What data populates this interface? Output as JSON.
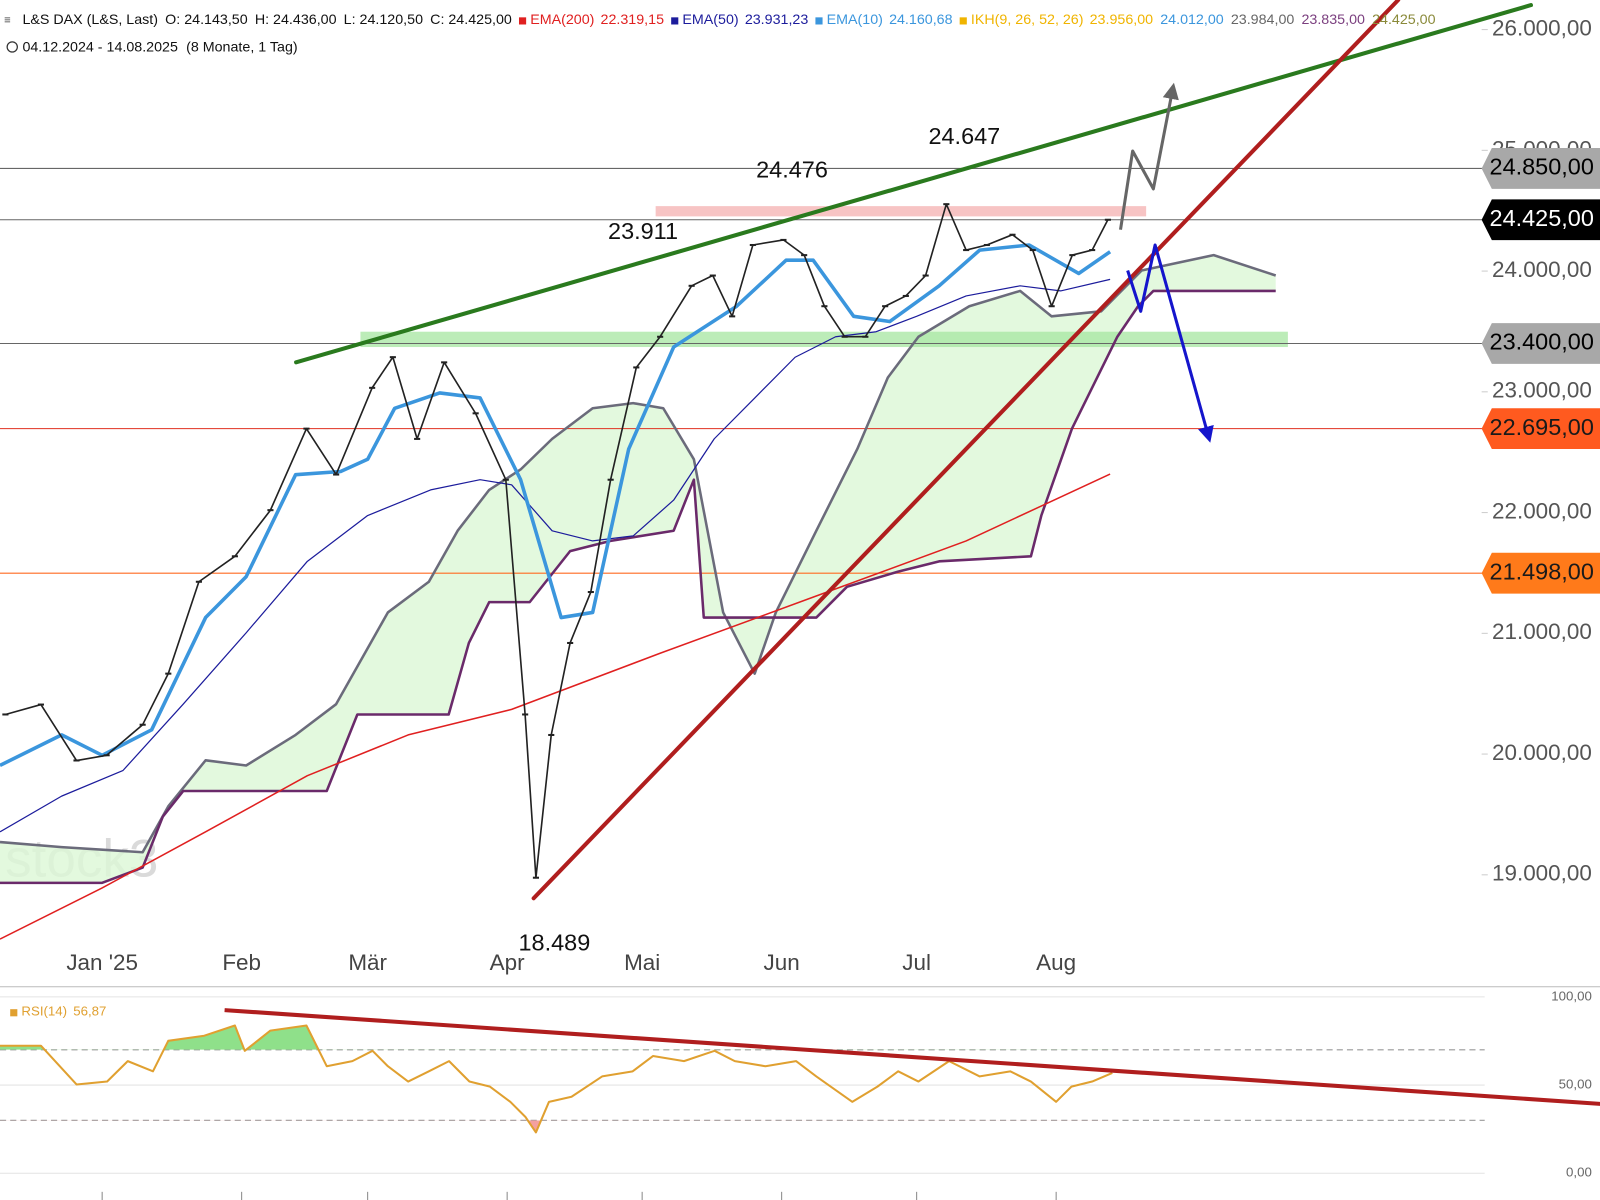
{
  "chart_data": [
    {
      "type": "line",
      "header": {
        "symbol": "L&S DAX (L&S, Last)",
        "ohlc": [
          "O: 24.143,50",
          "H: 24.436,00",
          "L: 24.120,50",
          "C: 24.425,00"
        ],
        "period": "04.12.2024 - 14.08.2025",
        "period_note": "(8 Monate, 1 Tag)"
      },
      "watermark": "stock3",
      "xlim": [
        5.3,
        334.1
      ],
      "ylim": [
        18090,
        26245
      ],
      "xticks": [
        {
          "value": 28,
          "label": "Jan '25"
        },
        {
          "value": 59,
          "label": "Feb"
        },
        {
          "value": 87,
          "label": "Mär"
        },
        {
          "value": 118,
          "label": "Apr"
        },
        {
          "value": 148,
          "label": "Mai"
        },
        {
          "value": 179,
          "label": "Jun"
        },
        {
          "value": 209,
          "label": "Jul"
        },
        {
          "value": 240,
          "label": "Aug"
        }
      ],
      "yticks": [
        {
          "value": 19000,
          "label": "19.000,00"
        },
        {
          "value": 20000,
          "label": "20.000,00"
        },
        {
          "value": 21000,
          "label": "21.000,00"
        },
        {
          "value": 22000,
          "label": "22.000,00"
        },
        {
          "value": 23000,
          "label": "23.000,00"
        },
        {
          "value": 24000,
          "label": "24.000,00"
        },
        {
          "value": 25000,
          "label": "25.000,00"
        },
        {
          "value": 26000,
          "label": "26.000,00"
        }
      ],
      "close": {
        "color": "#222222",
        "x": [
          6.5,
          14.4,
          22.3,
          29,
          37,
          42.7,
          49.5,
          57.5,
          65.4,
          73.4,
          80,
          88,
          92.6,
          98,
          104,
          111,
          117.7,
          122,
          124.4,
          127.8,
          132,
          136.6,
          141,
          146.7,
          152,
          159,
          163.7,
          168,
          172.6,
          179.4,
          184,
          188.5,
          193,
          197.6,
          202,
          206.6,
          211,
          215.6,
          220,
          224.6,
          230.3,
          234.8,
          239,
          243.6,
          248,
          251.5
        ],
        "values": [
          20328,
          20410,
          19947,
          19990,
          20243,
          20666,
          21427,
          21638,
          22020,
          22695,
          22315,
          23033,
          23287,
          22610,
          23244,
          22822,
          22272,
          20328,
          18976,
          20158,
          20920,
          21342,
          22272,
          23202,
          23456,
          23878,
          23963,
          23625,
          24216,
          24258,
          24132,
          23709,
          23456,
          23456,
          23709,
          23794,
          23963,
          24554,
          24174,
          24216,
          24301,
          24174,
          23709,
          24132,
          24174,
          24425
        ]
      },
      "series": [
        {
          "name": "EMA(200)",
          "last_label": "22.319,15",
          "color": "#e02020",
          "width": 1.5,
          "x": [
            5.3,
            28,
            51,
            73.6,
            96,
            119,
            152,
            186,
            220,
            252
          ],
          "values": [
            18468,
            18891,
            19356,
            19821,
            20159,
            20370,
            20835,
            21300,
            21765,
            22319
          ]
        },
        {
          "name": "EMA(50)",
          "last_label": "23.931,23",
          "color": "#1c1c9c",
          "width": 1.2,
          "x": [
            5.3,
            19,
            32.6,
            46,
            60,
            73.6,
            87,
            101,
            112,
            119,
            128,
            137,
            146,
            155,
            164,
            173,
            182,
            191,
            200,
            209,
            220,
            232,
            241,
            252
          ],
          "values": [
            19356,
            19652,
            19863,
            20413,
            21004,
            21596,
            21976,
            22188,
            22272,
            22230,
            21849,
            21765,
            21807,
            22103,
            22610,
            22948,
            23286,
            23456,
            23498,
            23625,
            23794,
            23878,
            23836,
            23931
          ]
        },
        {
          "name": "EMA(10)",
          "last_label": "24.160,68",
          "color": "#3b96dd",
          "width": 3.5,
          "x": [
            5.3,
            19,
            28,
            39,
            51,
            60,
            71,
            81,
            87,
            93,
            103,
            112,
            121,
            130,
            137,
            145,
            155,
            169,
            180,
            186,
            195,
            203,
            214,
            223,
            234,
            245,
            252
          ],
          "values": [
            19906,
            20159,
            19990,
            20201,
            21131,
            21469,
            22314,
            22340,
            22441,
            22864,
            22991,
            22949,
            22272,
            21131,
            21173,
            22526,
            23371,
            23709,
            24090,
            24090,
            23625,
            23582,
            23878,
            24174,
            24216,
            23980,
            24160
          ]
        }
      ],
      "ichimoku": {
        "name": "IKH(9, 26, 52, 26)",
        "name_color": "#f0b400",
        "labels": [
          "23.956,00",
          "24.012,00",
          "23.984,00",
          "23.835,00",
          "24.425,00"
        ],
        "label_colors": [
          "#f0b400",
          "#3b96dd",
          "#666666",
          "#7b3f7f",
          "#8a8a3a"
        ],
        "cloud_color": "#dcf7d6",
        "span_a": {
          "color": "#6b6b7b",
          "x": [
            5.3,
            19,
            37,
            42.7,
            51,
            60,
            71,
            80,
            91.5,
            100.6,
            107,
            114,
            121,
            128,
            137,
            146,
            152.7,
            159.5,
            166,
            173,
            177.7,
            186.7,
            195.8,
            202.6,
            209.4,
            220.7,
            232,
            239,
            250,
            259,
            275,
            288.8
          ],
          "values": [
            19271,
            19229,
            19187,
            19567,
            19948,
            19905,
            20159,
            20413,
            21173,
            21427,
            21850,
            22188,
            22357,
            22610,
            22864,
            22906,
            22864,
            22441,
            21173,
            20666,
            21173,
            21850,
            22526,
            23118,
            23456,
            23709,
            23836,
            23625,
            23667,
            24005,
            24132,
            23963
          ]
        },
        "span_b": {
          "color": "#6a2a6a",
          "x": [
            5.3,
            28,
            37,
            41.5,
            46,
            77.9,
            84.7,
            105,
            109.5,
            114,
            123,
            132,
            141,
            155,
            159.5,
            161.7,
            186.7,
            193.5,
            204.9,
            214,
            234.4,
            236.7,
            243.5,
            249.1,
            253.6,
            258.2,
            261.6,
            288.8
          ],
          "values": [
            18933,
            18933,
            19060,
            19483,
            19694,
            19694,
            20328,
            20328,
            20920,
            21258,
            21258,
            21681,
            21765,
            21850,
            22272,
            21131,
            21131,
            21385,
            21511,
            21596,
            21638,
            21976,
            22695,
            23118,
            23456,
            23709,
            23836,
            23836
          ]
        }
      },
      "levels": [
        {
          "value": 24850,
          "label": "24.850,00",
          "color": "#666666",
          "box": "#a8a8a8",
          "text_color": "#000000"
        },
        {
          "value": 24425,
          "label": "24.425,00",
          "color": "#666666",
          "box": "#000000",
          "text_color": "#ffffff"
        },
        {
          "value": 23400,
          "label": "23.400,00",
          "color": "#666666",
          "box": "#a8a8a8",
          "text_color": "#000000"
        },
        {
          "value": 22695,
          "label": "22.695,00",
          "color": "#e03020",
          "box": "#ff5a1f",
          "text_color": "#1a1a1a"
        },
        {
          "value": 21498,
          "label": "21.498,00",
          "color": "#ff6a20",
          "box": "#ff7a1a",
          "text_color": "#1a1a1a"
        }
      ],
      "zones": [
        {
          "x": [
            151,
            260
          ],
          "values": [
            24453,
            24538
          ],
          "color": "#f4b0b0"
        },
        {
          "x": [
            85.4,
            291.5
          ],
          "values": [
            23371,
            23498
          ],
          "color": "#a6e6a0"
        }
      ],
      "trendlines": [
        {
          "color": "#2a7a1e",
          "x": [
            71.1,
            345.5
          ],
          "values": [
            23244,
            26203
          ]
        },
        {
          "color": "#b01e1e",
          "x": [
            123.9,
            316
          ],
          "values": [
            18806,
            26245
          ]
        }
      ],
      "arrows": [
        {
          "color": "#666666",
          "x": [
            254.3,
            257,
            261.6,
            266
          ],
          "values": [
            24343,
            24994,
            24681,
            25527
          ]
        },
        {
          "color": "#1515cc",
          "x": [
            255.9,
            258.8,
            262,
            274
          ],
          "values": [
            24005,
            23667,
            24216,
            22610
          ]
        }
      ],
      "annotations": [
        {
          "text": "24.647",
          "x": 219.6,
          "y": 25104
        },
        {
          "text": "24.476",
          "x": 181.3,
          "y": 24825
        },
        {
          "text": "23.911",
          "x": 148.2,
          "y": 24318
        },
        {
          "text": "18.489",
          "x": 128.5,
          "y": 18426
        }
      ]
    },
    {
      "type": "line",
      "name": "RSI(14)",
      "value_label": "56,87",
      "color": "#e0a030",
      "xlim": [
        5.3,
        334.1
      ],
      "ylim": [
        -15.2,
        105.2
      ],
      "yticks": [
        {
          "value": 0,
          "label": "0,00"
        },
        {
          "value": 50,
          "label": "50,00"
        },
        {
          "value": 100,
          "label": "100,00"
        }
      ],
      "overbought": 70,
      "oversold": 30,
      "overbought_fill": "#8fe08a",
      "oversold_fill": "#f4a0a0",
      "x": [
        5.3,
        14.4,
        22.3,
        29.1,
        33.7,
        39.3,
        42.7,
        50.7,
        57.5,
        59.7,
        65.4,
        73.4,
        77.9,
        83.6,
        88.1,
        91.5,
        96,
        100.6,
        105.1,
        109.6,
        114.2,
        118.7,
        122.1,
        124.4,
        127.3,
        132.3,
        139.1,
        145.9,
        150.4,
        157.3,
        164.1,
        168.6,
        175.4,
        182.2,
        186.7,
        194.7,
        200.3,
        204.9,
        209.4,
        216.2,
        223,
        229.8,
        234.4,
        240,
        243.4,
        248,
        252.5
      ],
      "values": [
        72.3,
        72.3,
        50.3,
        52.0,
        63.6,
        57.8,
        75.1,
        78.0,
        83.8,
        69.4,
        80.9,
        83.8,
        60.7,
        63.6,
        69.4,
        60.7,
        52.0,
        57.8,
        63.6,
        52.0,
        49.1,
        40.5,
        31.8,
        23.1,
        40.5,
        43.4,
        54.9,
        57.8,
        66.5,
        63.6,
        69.4,
        63.6,
        60.7,
        63.6,
        54.9,
        40.5,
        49.1,
        57.8,
        52.0,
        63.6,
        54.9,
        57.8,
        52.0,
        40.5,
        49.1,
        52.0,
        56.87
      ],
      "trendline": {
        "color": "#b01e1e",
        "x": [
          55.2,
          360.9
        ],
        "values": [
          92.5,
          39.3
        ]
      }
    }
  ]
}
